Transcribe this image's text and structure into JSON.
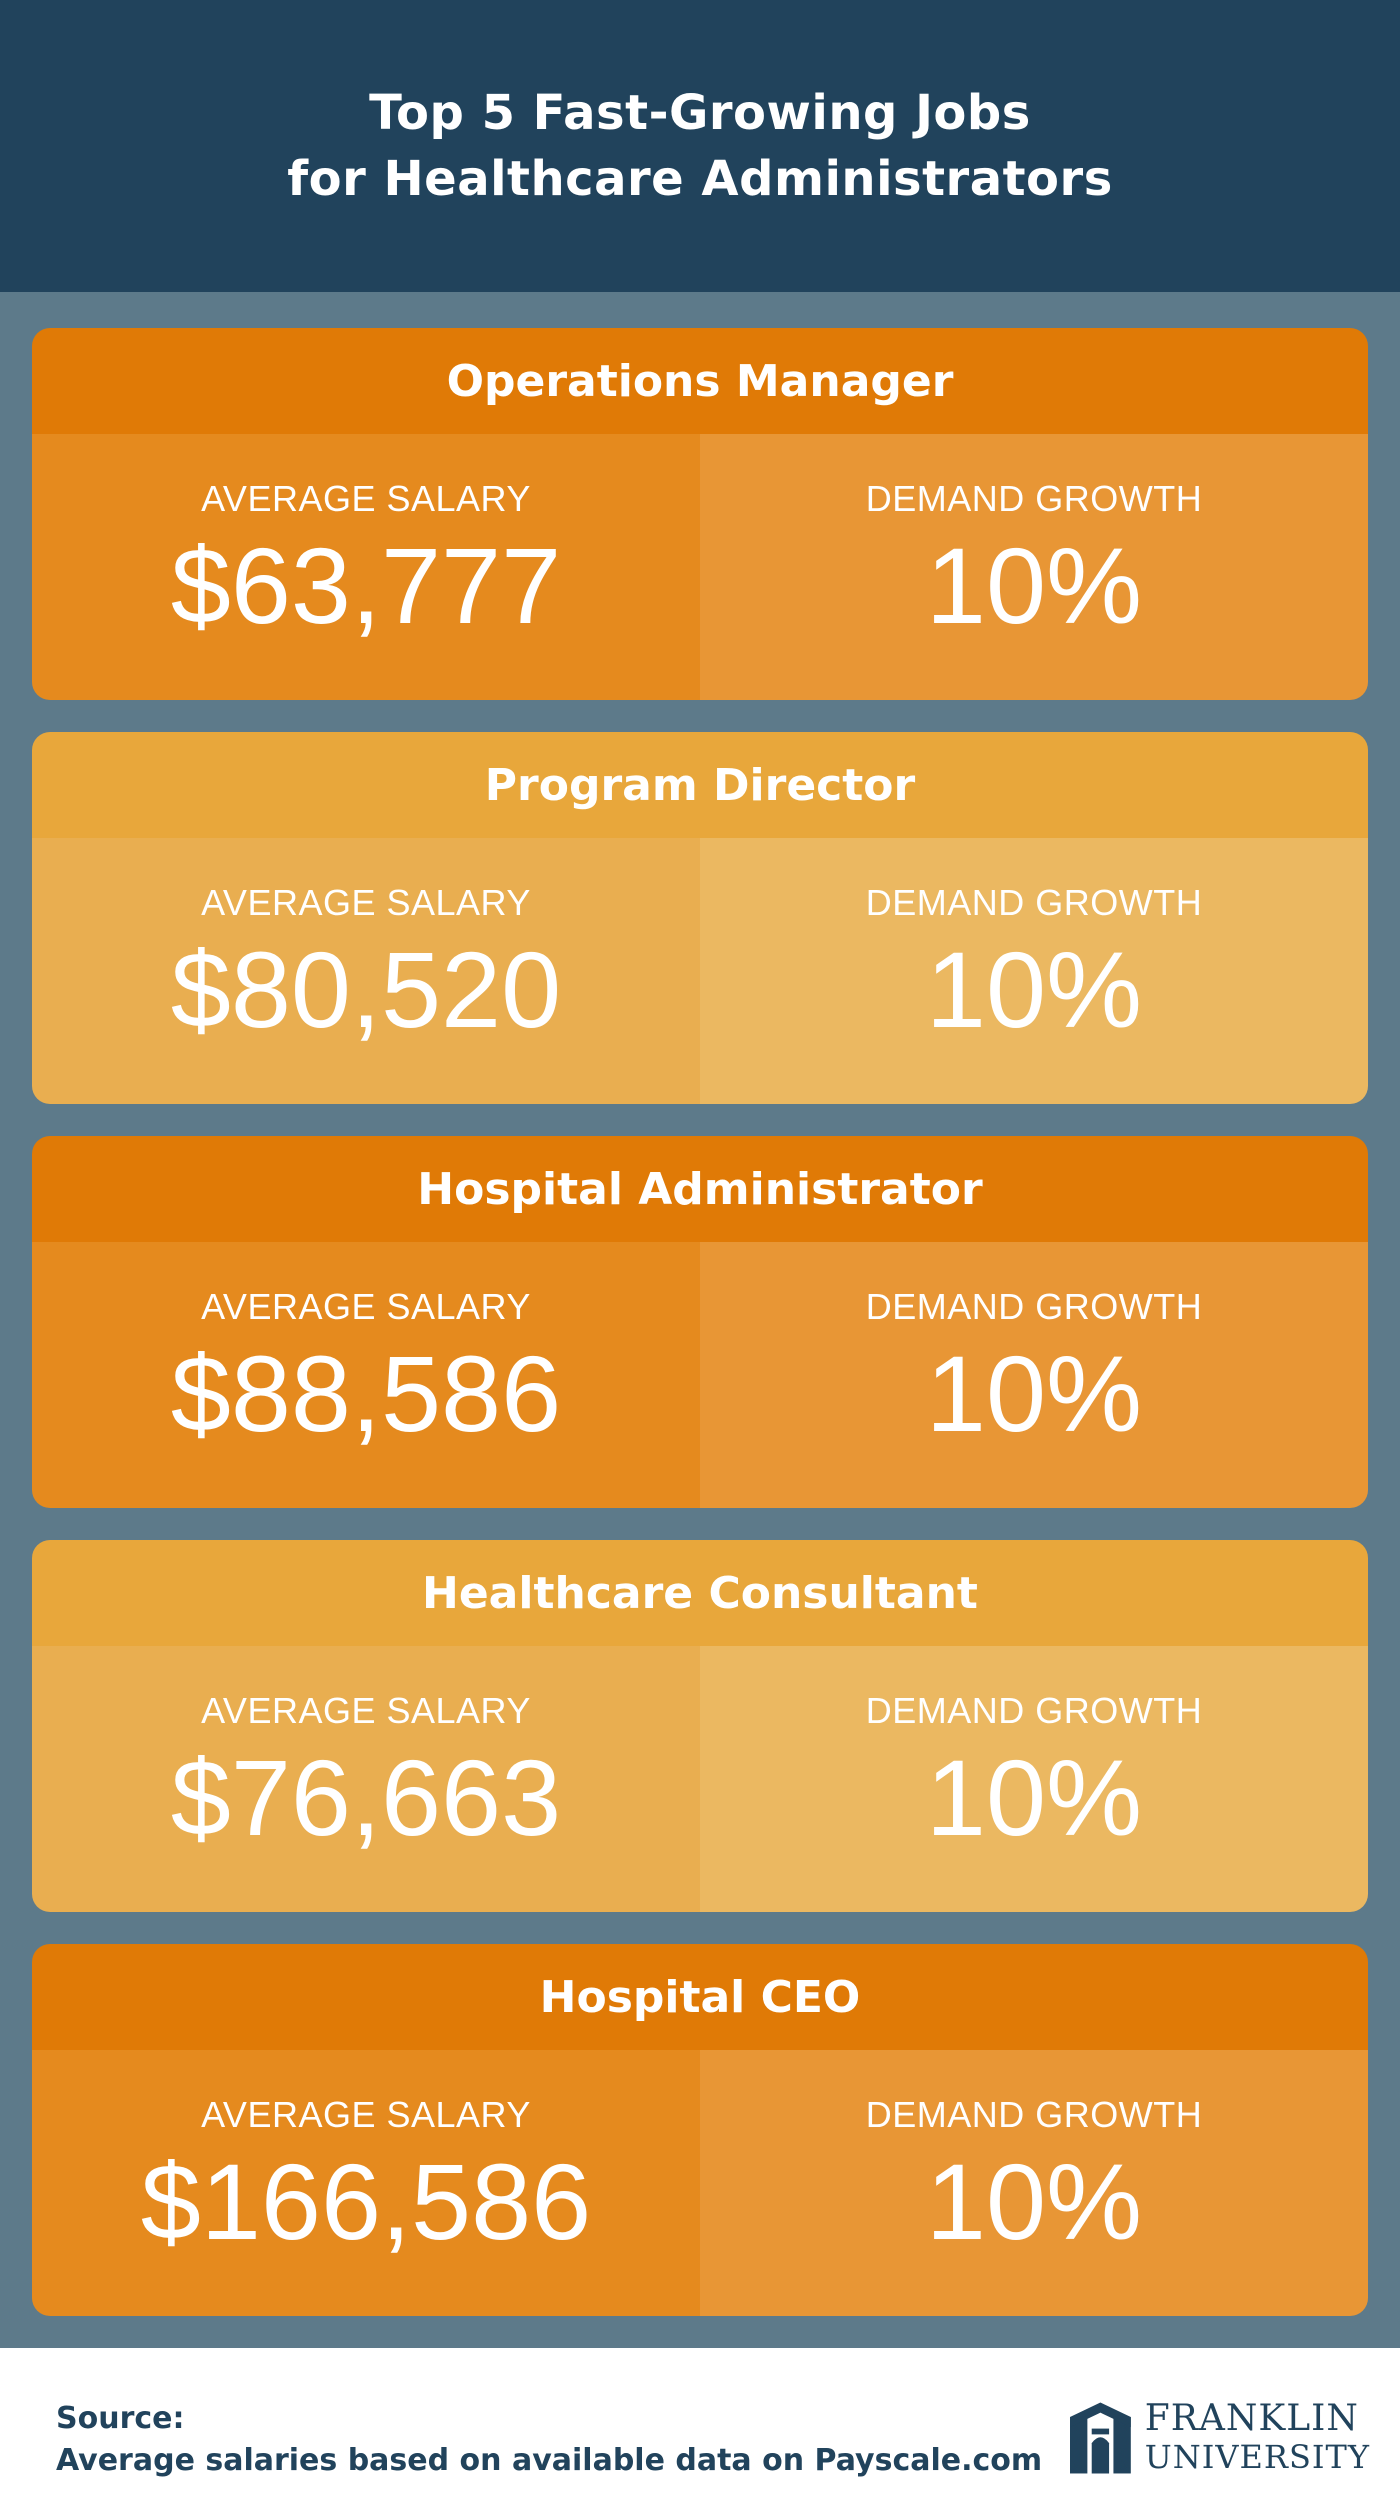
{
  "header": {
    "title_line1": "Top 5 Fast-Growing Jobs",
    "title_line2": "for Healthcare Administrators"
  },
  "jobs": [
    {
      "title": "Operations Manager",
      "salary_label": "AVERAGE SALARY",
      "salary": "$63,777",
      "growth_label": "DEMAND GROWTH",
      "growth": "10%"
    },
    {
      "title": "Program Director",
      "salary_label": "AVERAGE SALARY",
      "salary": "$80,520",
      "growth_label": "DEMAND GROWTH",
      "growth": "10%"
    },
    {
      "title": "Hospital Administrator",
      "salary_label": "AVERAGE SALARY",
      "salary": "$88,586",
      "growth_label": "DEMAND GROWTH",
      "growth": "10%"
    },
    {
      "title": "Healthcare Consultant",
      "salary_label": "AVERAGE SALARY",
      "salary": "$76,663",
      "growth_label": "DEMAND GROWTH",
      "growth": "10%"
    },
    {
      "title": "Hospital CEO",
      "salary_label": "AVERAGE SALARY",
      "salary": "$166,586",
      "growth_label": "DEMAND GROWTH",
      "growth": "10%"
    }
  ],
  "footer": {
    "source_label": "Source:",
    "source_text": "Average salaries based on available data on Payscale.com",
    "logo_line1": "FRANKLIN",
    "logo_line2": "UNIVERSITY",
    "logo_icon": "franklin-arch-logo"
  },
  "colors": {
    "header_bg": "#21435c",
    "page_bg": "#5d7a8a",
    "dark_orange": "#e07a06",
    "light_orange": "#e8a73b"
  }
}
